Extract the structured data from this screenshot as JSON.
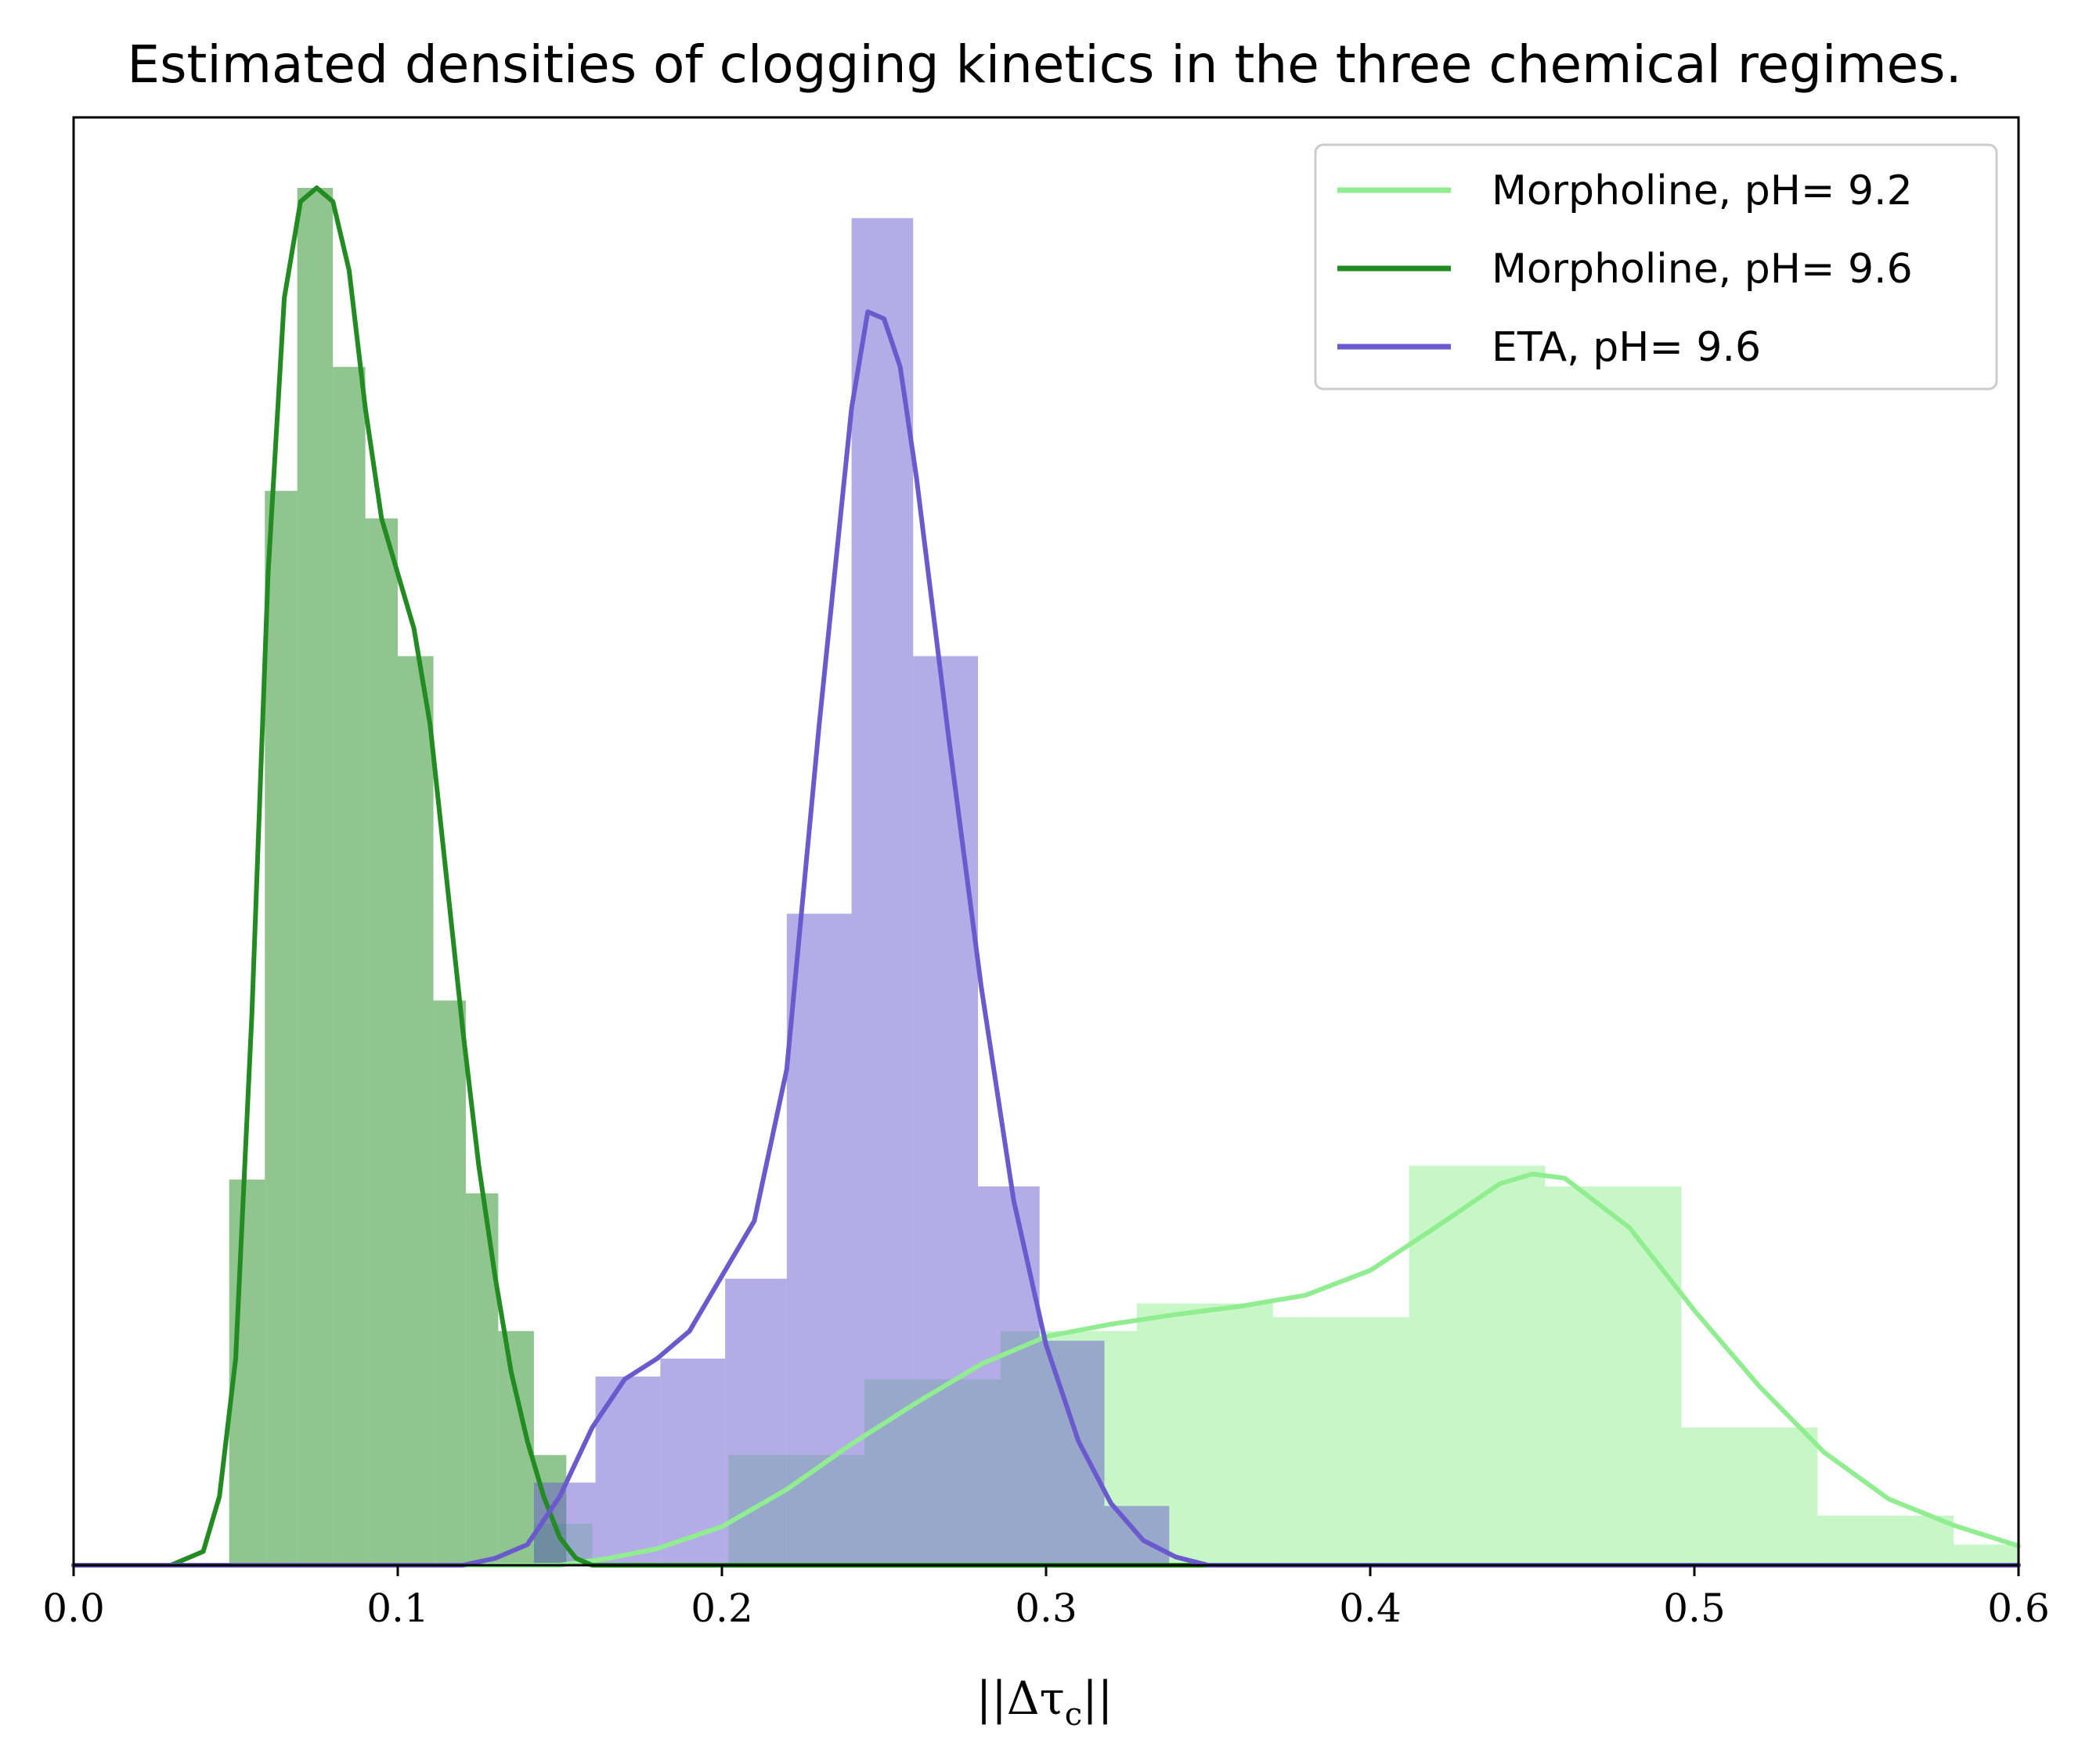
{
  "chart_data": {
    "type": "histogram+kde",
    "title": "Estimated densities of clogging kinetics in the three chemical regimes.",
    "xlabel": "||Δτ",
    "xlabel_subscript": "c",
    "xlabel_suffix": "||",
    "ylabel": "",
    "xlim": [
      0.0,
      0.6
    ],
    "ylim": [
      0,
      1.02
    ],
    "yticks_visible": false,
    "grid": false,
    "legend_position": "top-right",
    "xticks": [
      {
        "value": 0.0,
        "label": "0.0"
      },
      {
        "value": 0.1,
        "label": "0.1"
      },
      {
        "value": 0.2,
        "label": "0.2"
      },
      {
        "value": 0.3,
        "label": "0.3"
      },
      {
        "value": 0.4,
        "label": "0.4"
      },
      {
        "value": 0.5,
        "label": "0.5"
      },
      {
        "value": 0.6,
        "label": "0.6"
      }
    ],
    "series": [
      {
        "name": "Morpholine, pH= 9.2",
        "line_color": "#90ee90",
        "hist_color": "#90ee90",
        "hist_opacity": 0.5,
        "bins": [
          {
            "x0": 0.142,
            "x1": 0.16,
            "h": 0.03
          },
          {
            "x0": 0.16,
            "x1": 0.202,
            "h": 0.0
          },
          {
            "x0": 0.202,
            "x1": 0.244,
            "h": 0.08
          },
          {
            "x0": 0.244,
            "x1": 0.286,
            "h": 0.135
          },
          {
            "x0": 0.286,
            "x1": 0.328,
            "h": 0.17
          },
          {
            "x0": 0.328,
            "x1": 0.37,
            "h": 0.19
          },
          {
            "x0": 0.37,
            "x1": 0.412,
            "h": 0.18
          },
          {
            "x0": 0.412,
            "x1": 0.454,
            "h": 0.29
          },
          {
            "x0": 0.454,
            "x1": 0.496,
            "h": 0.275
          },
          {
            "x0": 0.496,
            "x1": 0.538,
            "h": 0.1
          },
          {
            "x0": 0.538,
            "x1": 0.58,
            "h": 0.036
          },
          {
            "x0": 0.58,
            "x1": 0.6,
            "h": 0.015
          }
        ],
        "kde": {
          "x": [
            0.0,
            0.15,
            0.165,
            0.18,
            0.2,
            0.22,
            0.24,
            0.26,
            0.28,
            0.3,
            0.32,
            0.34,
            0.36,
            0.38,
            0.4,
            0.42,
            0.44,
            0.45,
            0.46,
            0.48,
            0.5,
            0.52,
            0.54,
            0.56,
            0.58,
            0.6
          ],
          "y": [
            0.0,
            0.0,
            0.005,
            0.012,
            0.028,
            0.055,
            0.088,
            0.118,
            0.146,
            0.166,
            0.175,
            0.182,
            0.188,
            0.196,
            0.214,
            0.245,
            0.277,
            0.284,
            0.281,
            0.245,
            0.185,
            0.13,
            0.082,
            0.048,
            0.029,
            0.014
          ]
        }
      },
      {
        "name": "Morpholine, pH= 9.6",
        "line_color": "#228b22",
        "hist_color": "#228b22",
        "hist_opacity": 0.5,
        "bins": [
          {
            "x0": 0.048,
            "x1": 0.059,
            "h": 0.28
          },
          {
            "x0": 0.059,
            "x1": 0.069,
            "h": 0.78
          },
          {
            "x0": 0.069,
            "x1": 0.08,
            "h": 1.0
          },
          {
            "x0": 0.08,
            "x1": 0.09,
            "h": 0.87
          },
          {
            "x0": 0.09,
            "x1": 0.1,
            "h": 0.76
          },
          {
            "x0": 0.1,
            "x1": 0.111,
            "h": 0.66
          },
          {
            "x0": 0.111,
            "x1": 0.121,
            "h": 0.41
          },
          {
            "x0": 0.121,
            "x1": 0.131,
            "h": 0.27
          },
          {
            "x0": 0.131,
            "x1": 0.142,
            "h": 0.17
          },
          {
            "x0": 0.142,
            "x1": 0.152,
            "h": 0.08
          }
        ],
        "kde": {
          "x": [
            0.0,
            0.03,
            0.04,
            0.045,
            0.05,
            0.055,
            0.06,
            0.065,
            0.07,
            0.075,
            0.08,
            0.085,
            0.09,
            0.095,
            0.1,
            0.105,
            0.11,
            0.115,
            0.12,
            0.125,
            0.13,
            0.135,
            0.14,
            0.145,
            0.15,
            0.155,
            0.16,
            0.17,
            0.6
          ],
          "y": [
            0.0,
            0.0,
            0.01,
            0.05,
            0.15,
            0.4,
            0.72,
            0.92,
            0.99,
            1.0,
            0.99,
            0.94,
            0.84,
            0.76,
            0.72,
            0.68,
            0.61,
            0.5,
            0.39,
            0.29,
            0.21,
            0.14,
            0.09,
            0.05,
            0.02,
            0.005,
            0.0,
            0.0,
            0.0
          ]
        }
      },
      {
        "name": "ETA, pH= 9.6",
        "line_color": "#6a5acd",
        "hist_color": "#6a5acd",
        "hist_opacity": 0.5,
        "bins": [
          {
            "x0": 0.142,
            "x1": 0.161,
            "h": 0.06
          },
          {
            "x0": 0.161,
            "x1": 0.181,
            "h": 0.137
          },
          {
            "x0": 0.181,
            "x1": 0.201,
            "h": 0.15
          },
          {
            "x0": 0.201,
            "x1": 0.22,
            "h": 0.208
          },
          {
            "x0": 0.22,
            "x1": 0.24,
            "h": 0.473
          },
          {
            "x0": 0.24,
            "x1": 0.259,
            "h": 0.978
          },
          {
            "x0": 0.259,
            "x1": 0.279,
            "h": 0.66
          },
          {
            "x0": 0.279,
            "x1": 0.298,
            "h": 0.275
          },
          {
            "x0": 0.298,
            "x1": 0.318,
            "h": 0.163
          },
          {
            "x0": 0.318,
            "x1": 0.338,
            "h": 0.043
          }
        ],
        "kde": {
          "x": [
            0.0,
            0.12,
            0.13,
            0.14,
            0.15,
            0.16,
            0.17,
            0.18,
            0.19,
            0.2,
            0.21,
            0.22,
            0.23,
            0.24,
            0.245,
            0.25,
            0.255,
            0.26,
            0.27,
            0.28,
            0.29,
            0.3,
            0.31,
            0.32,
            0.33,
            0.34,
            0.35,
            0.6
          ],
          "y": [
            0.0,
            0.0,
            0.005,
            0.015,
            0.05,
            0.1,
            0.135,
            0.15,
            0.17,
            0.21,
            0.25,
            0.36,
            0.61,
            0.84,
            0.91,
            0.905,
            0.87,
            0.79,
            0.6,
            0.42,
            0.265,
            0.16,
            0.09,
            0.045,
            0.018,
            0.006,
            0.0,
            0.0
          ]
        }
      }
    ]
  }
}
